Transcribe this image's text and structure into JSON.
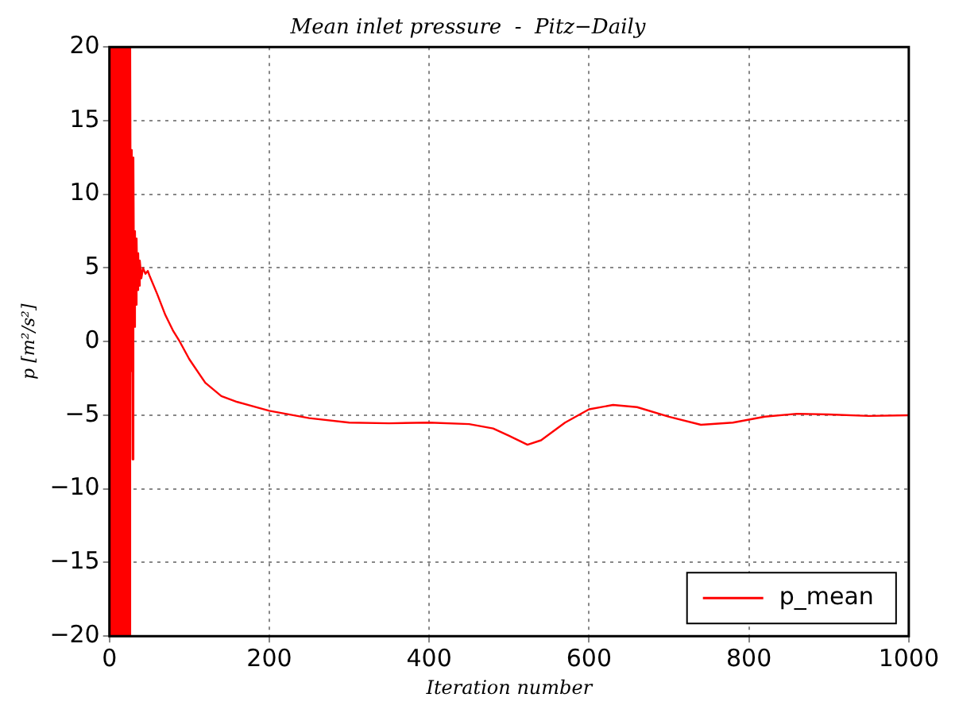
{
  "chart_data": {
    "type": "line",
    "title": "Mean inlet pressure  -  Pitz−Daily",
    "xlabel": "Iteration number",
    "ylabel": "p [m²/s²]",
    "x": [
      0,
      1,
      2,
      3,
      4,
      5,
      6,
      7,
      8,
      9,
      10,
      11,
      12,
      13,
      14,
      15,
      16,
      17,
      18,
      19,
      20,
      21,
      22,
      23,
      24,
      25,
      26,
      27,
      28,
      29,
      30,
      31,
      32,
      33,
      34,
      35,
      36,
      37,
      38,
      40,
      42,
      45,
      48,
      50,
      60,
      70,
      80,
      88,
      100,
      120,
      140,
      160,
      200,
      250,
      300,
      350,
      400,
      450,
      480,
      500,
      523,
      540,
      570,
      600,
      630,
      660,
      700,
      740,
      780,
      820,
      860,
      900,
      950,
      1000
    ],
    "series": [
      {
        "name": "p_mean",
        "color": "#ff0000",
        "values": [
          20,
          -20,
          20,
          -20,
          20,
          -20,
          20,
          -20,
          20,
          -20,
          20,
          -20,
          20,
          -20,
          20,
          -20,
          20,
          -20,
          20,
          -20,
          20,
          -20,
          20,
          -20,
          20,
          -20,
          20,
          -2,
          13,
          -8,
          12.5,
          1,
          7.5,
          2.5,
          7,
          3.5,
          6,
          3.8,
          5.5,
          4.3,
          5,
          4.6,
          4.8,
          4.5,
          3.2,
          1.8,
          0.7,
          0,
          -1.2,
          -2.8,
          -3.7,
          -4.1,
          -4.7,
          -5.2,
          -5.5,
          -5.55,
          -5.5,
          -5.6,
          -5.9,
          -6.4,
          -7,
          -6.7,
          -5.5,
          -4.6,
          -4.3,
          -4.45,
          -5.1,
          -5.65,
          -5.5,
          -5.1,
          -4.9,
          -4.95,
          -5.05,
          -5
        ]
      }
    ],
    "xlim": [
      0,
      1000
    ],
    "xticks": [
      0,
      200,
      400,
      600,
      800,
      1000
    ],
    "ylim": [
      -20,
      20
    ],
    "yticks": [
      -20,
      -15,
      -10,
      -5,
      0,
      5,
      10,
      15,
      20
    ],
    "grid": true,
    "legend": "bottom right",
    "marker": "none",
    "line_style": "solid"
  }
}
